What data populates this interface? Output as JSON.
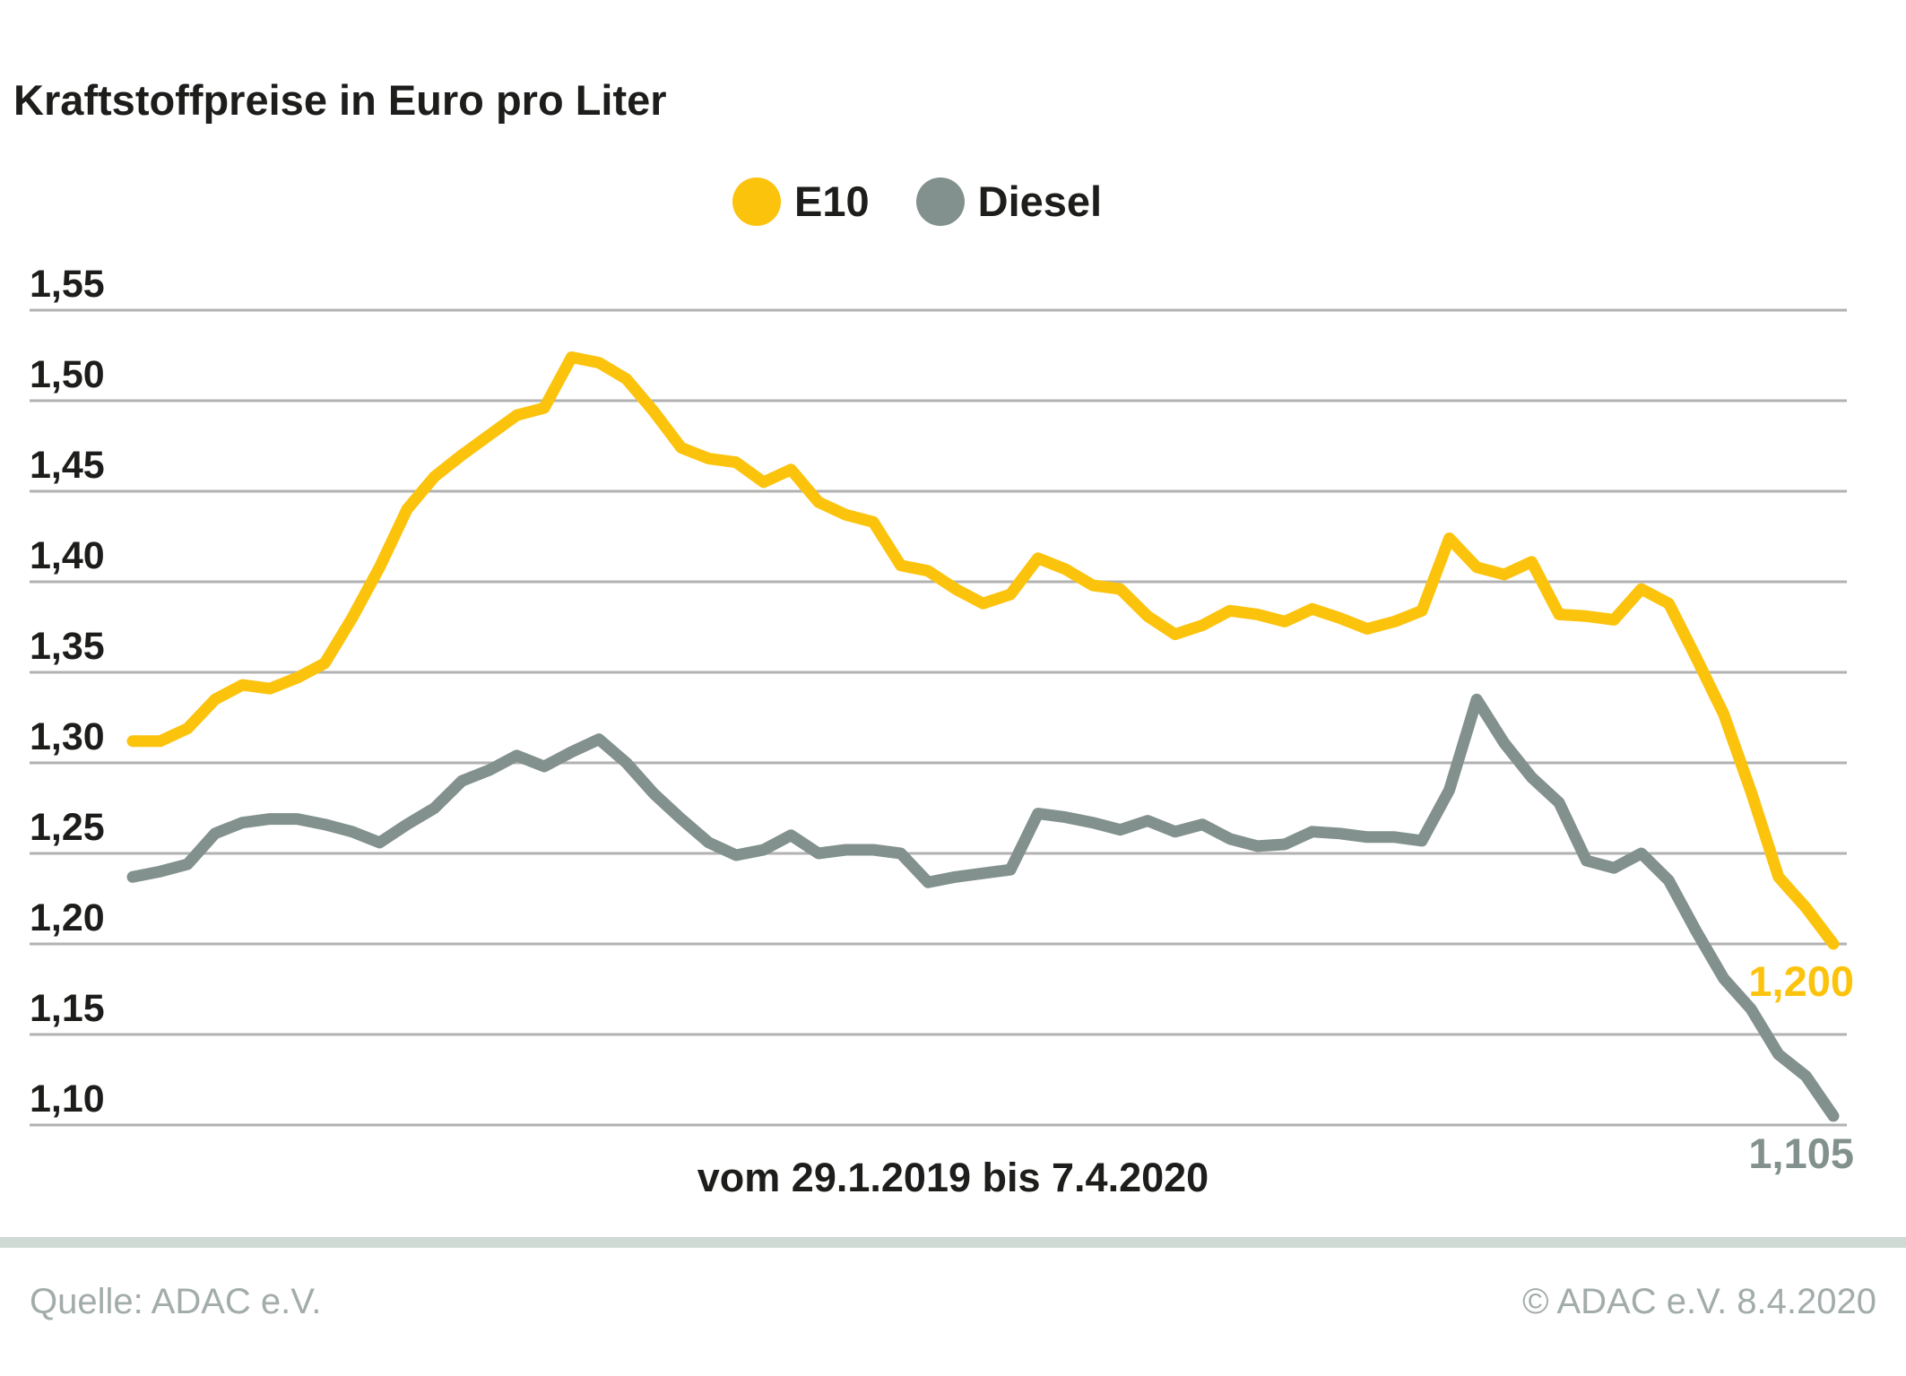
{
  "title": "Kraftstoffpreise in Euro pro Liter",
  "legend": {
    "items": [
      {
        "label": "E10",
        "color": "#FCC30D"
      },
      {
        "label": "Diesel",
        "color": "#82918D"
      }
    ]
  },
  "x_caption": "vom 29.1.2019 bis 7.4.2020",
  "footer": {
    "source": "Quelle: ADAC e.V.",
    "copyright": "© ADAC e.V. 8.4.2020"
  },
  "colors": {
    "e10": "#FCC30D",
    "diesel": "#82918D",
    "gridline": "#b2b2b2",
    "text": "#1d1d1b",
    "footer_bar": "#cfdad4",
    "footer_text": "#a2acaa",
    "background": "#ffffff"
  },
  "chart_data": {
    "type": "line",
    "title": "Kraftstoffpreise in Euro pro Liter",
    "x_caption": "vom 29.1.2019 bis 7.4.2020",
    "x_start": "29.1.2019",
    "x_end": "7.4.2020",
    "x_unit": "week",
    "ylabel": "Euro pro Liter",
    "ylim": [
      1.1,
      1.55
    ],
    "grid": true,
    "legend_position": "top",
    "y_tick_labels": [
      "1,55",
      "1,50",
      "1,45",
      "1,40",
      "1,35",
      "1,30",
      "1,25",
      "1,20",
      "1,15",
      "1,10"
    ],
    "y_tick_values": [
      1.55,
      1.5,
      1.45,
      1.4,
      1.35,
      1.3,
      1.25,
      1.2,
      1.15,
      1.1
    ],
    "series": [
      {
        "name": "E10",
        "color": "#FCC30D",
        "end_label": "1,200",
        "values": [
          1.312,
          1.312,
          1.319,
          1.335,
          1.343,
          1.341,
          1.347,
          1.355,
          1.38,
          1.408,
          1.44,
          1.458,
          1.47,
          1.481,
          1.492,
          1.496,
          1.524,
          1.521,
          1.512,
          1.494,
          1.474,
          1.468,
          1.466,
          1.455,
          1.462,
          1.444,
          1.437,
          1.433,
          1.409,
          1.406,
          1.396,
          1.388,
          1.393,
          1.413,
          1.407,
          1.398,
          1.396,
          1.381,
          1.371,
          1.376,
          1.384,
          1.382,
          1.378,
          1.385,
          1.38,
          1.374,
          1.378,
          1.384,
          1.424,
          1.408,
          1.404,
          1.411,
          1.382,
          1.381,
          1.379,
          1.396,
          1.388,
          1.358,
          1.327,
          1.284,
          1.237,
          1.22,
          1.2
        ]
      },
      {
        "name": "Diesel",
        "color": "#82918D",
        "end_label": "1,105",
        "values": [
          1.237,
          1.24,
          1.244,
          1.261,
          1.267,
          1.269,
          1.269,
          1.266,
          1.262,
          1.256,
          1.266,
          1.275,
          1.29,
          1.296,
          1.304,
          1.298,
          1.306,
          1.313,
          1.3,
          1.283,
          1.269,
          1.256,
          1.249,
          1.252,
          1.26,
          1.25,
          1.252,
          1.252,
          1.25,
          1.234,
          1.237,
          1.239,
          1.241,
          1.272,
          1.27,
          1.267,
          1.263,
          1.268,
          1.262,
          1.266,
          1.258,
          1.254,
          1.255,
          1.262,
          1.261,
          1.259,
          1.259,
          1.257,
          1.285,
          1.335,
          1.311,
          1.292,
          1.278,
          1.246,
          1.242,
          1.25,
          1.235,
          1.207,
          1.181,
          1.164,
          1.139,
          1.127,
          1.105
        ]
      }
    ]
  }
}
